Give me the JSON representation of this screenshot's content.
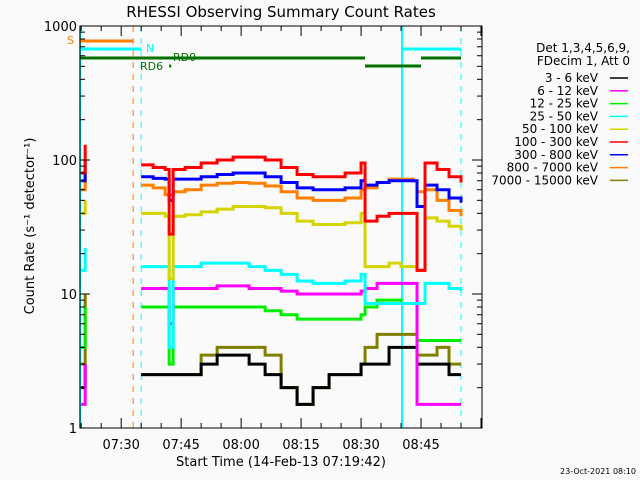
{
  "chart_data": {
    "type": "line",
    "title": "RHESSI Observing Summary Count Rates",
    "xlabel": "Start Time (14-Feb-13 07:19:42)",
    "ylabel": "Count Rate (s⁻¹ detector⁻¹)",
    "x_start": "07:19:42",
    "x_end": "09:00:15",
    "yscale": "log",
    "ylim": [
      1,
      1000
    ],
    "x_ticks": [
      "07:30",
      "07:45",
      "08:00",
      "08:15",
      "08:30",
      "08:45"
    ],
    "y_ticks": [
      "1",
      "10",
      "100",
      "1000"
    ],
    "grid": false,
    "legend_placement": "right",
    "legend_header": [
      "Det 1,3,4,5,6,9,",
      "FDecim 1, Att 0"
    ],
    "times": [
      "07:20",
      "07:21",
      "07:28",
      "07:35",
      "07:38",
      "07:41",
      "07:42",
      "07:43",
      "07:46",
      "07:50",
      "07:54",
      "07:58",
      "08:02",
      "08:06",
      "08:10",
      "08:14",
      "08:18",
      "08:22",
      "08:26",
      "08:30",
      "08:31",
      "08:34",
      "08:37",
      "08:40",
      "08:43",
      "08:44",
      "08:45",
      "08:46",
      "08:49",
      "08:52",
      "08:55"
    ],
    "series": [
      {
        "name": "3 - 6 keV",
        "color": "#000000",
        "values": [
          2,
          3,
          null,
          2.5,
          2.5,
          2.5,
          2.5,
          2.5,
          2.5,
          3,
          3.5,
          3.5,
          3,
          2.5,
          2,
          1.5,
          2,
          2.5,
          2.5,
          3,
          3,
          3,
          4,
          4,
          4,
          3,
          3,
          3,
          3,
          2.5,
          2.5
        ]
      },
      {
        "name": "6 - 12 keV",
        "color": "#ff00ff",
        "values": [
          1.5,
          3,
          null,
          11,
          11,
          11,
          6,
          11,
          11,
          11,
          11.5,
          11.5,
          11,
          11,
          10.5,
          10,
          10,
          10,
          10,
          10.5,
          11,
          12,
          12,
          12,
          12,
          1.5,
          1.5,
          1.5,
          1.5,
          1.5,
          1.5
        ]
      },
      {
        "name": "12 - 25 keV",
        "color": "#00ee00",
        "values": [
          4,
          8,
          null,
          8,
          8,
          8,
          3,
          8,
          8,
          8,
          8,
          8,
          8,
          7.5,
          7,
          6.5,
          6.5,
          6.5,
          6.5,
          7,
          8,
          9,
          9,
          8.5,
          8.5,
          4.5,
          4.5,
          4.5,
          4.5,
          4.5,
          4.5
        ]
      },
      {
        "name": "25 - 50 keV",
        "color": "#00ffff",
        "values": [
          15,
          22,
          null,
          16,
          16,
          16,
          4,
          16,
          16,
          17,
          17,
          17,
          16,
          15,
          14,
          12.5,
          12,
          12,
          12.5,
          14,
          8.5,
          8.5,
          8.5,
          8.5,
          8.5,
          8.5,
          8.5,
          12,
          12,
          11,
          10.5
        ]
      },
      {
        "name": "50 - 100 keV",
        "color": "#d4d400",
        "values": [
          40,
          50,
          null,
          40,
          40,
          38,
          13,
          38,
          39,
          41,
          43,
          45,
          45,
          44,
          40,
          35,
          33,
          33,
          34,
          40,
          16,
          16,
          17,
          16,
          16,
          15,
          15,
          37,
          35,
          32,
          30
        ]
      },
      {
        "name": "100 - 300 keV",
        "color": "#ff0000",
        "values": [
          80,
          130,
          null,
          92,
          88,
          85,
          28,
          85,
          88,
          95,
          100,
          105,
          105,
          100,
          88,
          78,
          75,
          75,
          80,
          95,
          35,
          38,
          40,
          40,
          40,
          15,
          15,
          95,
          85,
          75,
          68
        ]
      },
      {
        "name": "300 - 800 keV",
        "color": "#0000ff",
        "values": [
          70,
          100,
          null,
          75,
          73,
          72,
          50,
          72,
          72,
          75,
          78,
          80,
          80,
          75,
          68,
          62,
          60,
          60,
          62,
          70,
          65,
          68,
          70,
          70,
          70,
          45,
          45,
          65,
          60,
          52,
          48
        ]
      },
      {
        "name": "800 - 7000 keV",
        "color": "#ff8000",
        "values": [
          60,
          90,
          null,
          65,
          62,
          55,
          55,
          58,
          60,
          65,
          67,
          68,
          67,
          64,
          58,
          52,
          50,
          50,
          52,
          60,
          62,
          68,
          72,
          72,
          70,
          58,
          58,
          60,
          50,
          42,
          38
        ]
      },
      {
        "name": "7000 - 15000 keV",
        "color": "#808000",
        "values": [
          3,
          10,
          null,
          2.5,
          2.5,
          2.5,
          2.5,
          2.5,
          2.5,
          3.5,
          4,
          4,
          4,
          3.5,
          2,
          1.5,
          2,
          2.5,
          2.5,
          3,
          4,
          5,
          5,
          5,
          5,
          3.5,
          3.5,
          3.5,
          4,
          3,
          3
        ]
      }
    ],
    "flags": [
      {
        "label": "S",
        "color": "#ff8000",
        "intervals": [
          [
            "07:19:42",
            "07:33"
          ]
        ]
      },
      {
        "label": "N",
        "color": "#00ffff",
        "intervals": [
          [
            "07:19:42",
            "07:35"
          ],
          [
            "08:40",
            "08:55"
          ]
        ]
      },
      {
        "label": "RD0",
        "color": "#007000",
        "intervals": [
          [
            "07:19:42",
            "08:31"
          ],
          [
            "08:45",
            "08:55"
          ]
        ]
      },
      {
        "label": "RD6",
        "color": "#007000",
        "intervals": [
          [
            "07:42",
            "07:42:30"
          ],
          [
            "08:31",
            "08:45"
          ]
        ]
      }
    ],
    "vertical_lines": [
      {
        "time": "07:33",
        "color": "#ff8000",
        "style": "dashed"
      },
      {
        "time": "07:35",
        "color": "#00ffff",
        "style": "dashed"
      },
      {
        "time": "08:55",
        "color": "#00ffff",
        "style": "dashed"
      },
      {
        "time": "07:19:45",
        "color": "#00ffff",
        "style": "solid"
      },
      {
        "time": "08:40:15",
        "color": "#00ffff",
        "style": "solid"
      }
    ]
  },
  "footer": {
    "timestamp": "23-Oct-2021 08:10"
  }
}
